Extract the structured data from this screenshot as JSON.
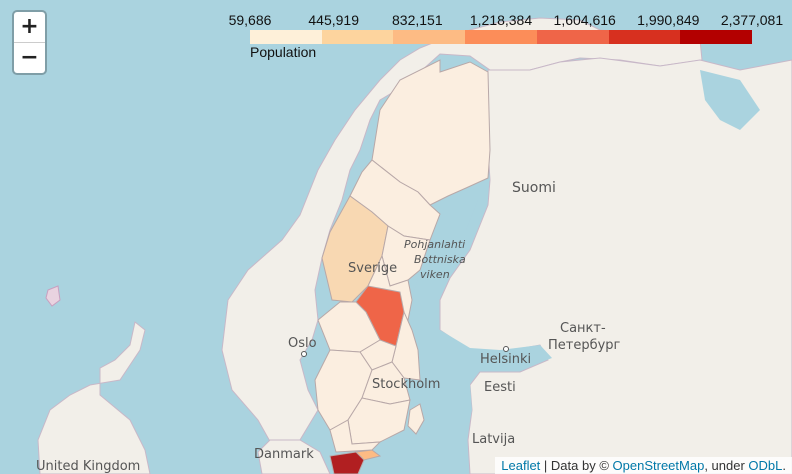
{
  "zoom": {
    "in_label": "+",
    "out_label": "−"
  },
  "legend": {
    "ticks": [
      "59,686",
      "445,919",
      "832,151",
      "1,218,384",
      "1,604,616",
      "1,990,849",
      "2,377,081"
    ],
    "caption": "Population",
    "colors": [
      "#fef0d9",
      "#fdd49e",
      "#fdbb84",
      "#fc8d59",
      "#ef6548",
      "#d7301f",
      "#b30000"
    ]
  },
  "places": {
    "suomi": "Suomi",
    "sverige": "Sverige",
    "oslo": "Oslo",
    "helsinki": "Helsinki",
    "stockholm": "Stockholm",
    "spb_line1": "Санкт-",
    "spb_line2": "Петербург",
    "eesti": "Eesti",
    "latvija": "Latvija",
    "danmark": "Danmark",
    "uk": "United Kingdom",
    "gulf_line1": "Pohjanlahti",
    "gulf_line2": "Bottniska",
    "gulf_line3": "viken"
  },
  "attribution": {
    "leaflet": "Leaflet",
    "sep": " | Data by © ",
    "osm": "OpenStreetMap",
    "under": ", under ",
    "odbl": "ODbL",
    "end": "."
  }
}
